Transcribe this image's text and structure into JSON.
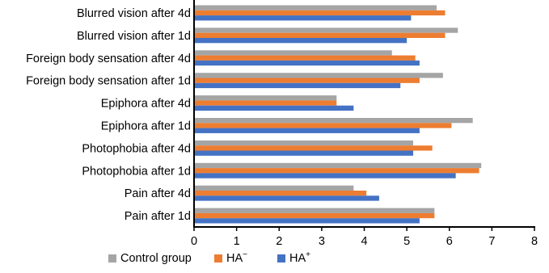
{
  "chart_data": {
    "type": "bar",
    "orientation": "horizontal",
    "categories": [
      "Blurred vision after 4d",
      "Blurred vision after 1d",
      "Foreign body sensation after 4d",
      "Foreign body sensation after 1d",
      "Epiphora after 4d",
      "Epiphora after 1d",
      "Photophobia after 4d",
      "Photophobia after 1d",
      "Pain after 4d",
      "Pain after 1d"
    ],
    "series": [
      {
        "name": "Control group",
        "color": "#a5a5a5",
        "values": [
          5.7,
          6.2,
          4.65,
          5.85,
          3.35,
          6.55,
          5.15,
          6.75,
          3.75,
          5.65
        ]
      },
      {
        "name": "HA",
        "name_sup": "−",
        "color": "#ed7d31",
        "values": [
          5.9,
          5.9,
          5.2,
          5.3,
          3.35,
          6.05,
          5.6,
          6.7,
          4.05,
          5.65
        ]
      },
      {
        "name": "HA",
        "name_sup": "+",
        "color": "#4472c4",
        "values": [
          5.1,
          5.0,
          5.3,
          4.85,
          3.75,
          5.3,
          5.15,
          6.15,
          4.35,
          5.3
        ]
      }
    ],
    "x_ticks": [
      "0",
      "1",
      "2",
      "3",
      "4",
      "5",
      "6",
      "7",
      "8"
    ],
    "xlim": [
      0,
      8
    ],
    "grid": false,
    "legend_position": "bottom"
  }
}
